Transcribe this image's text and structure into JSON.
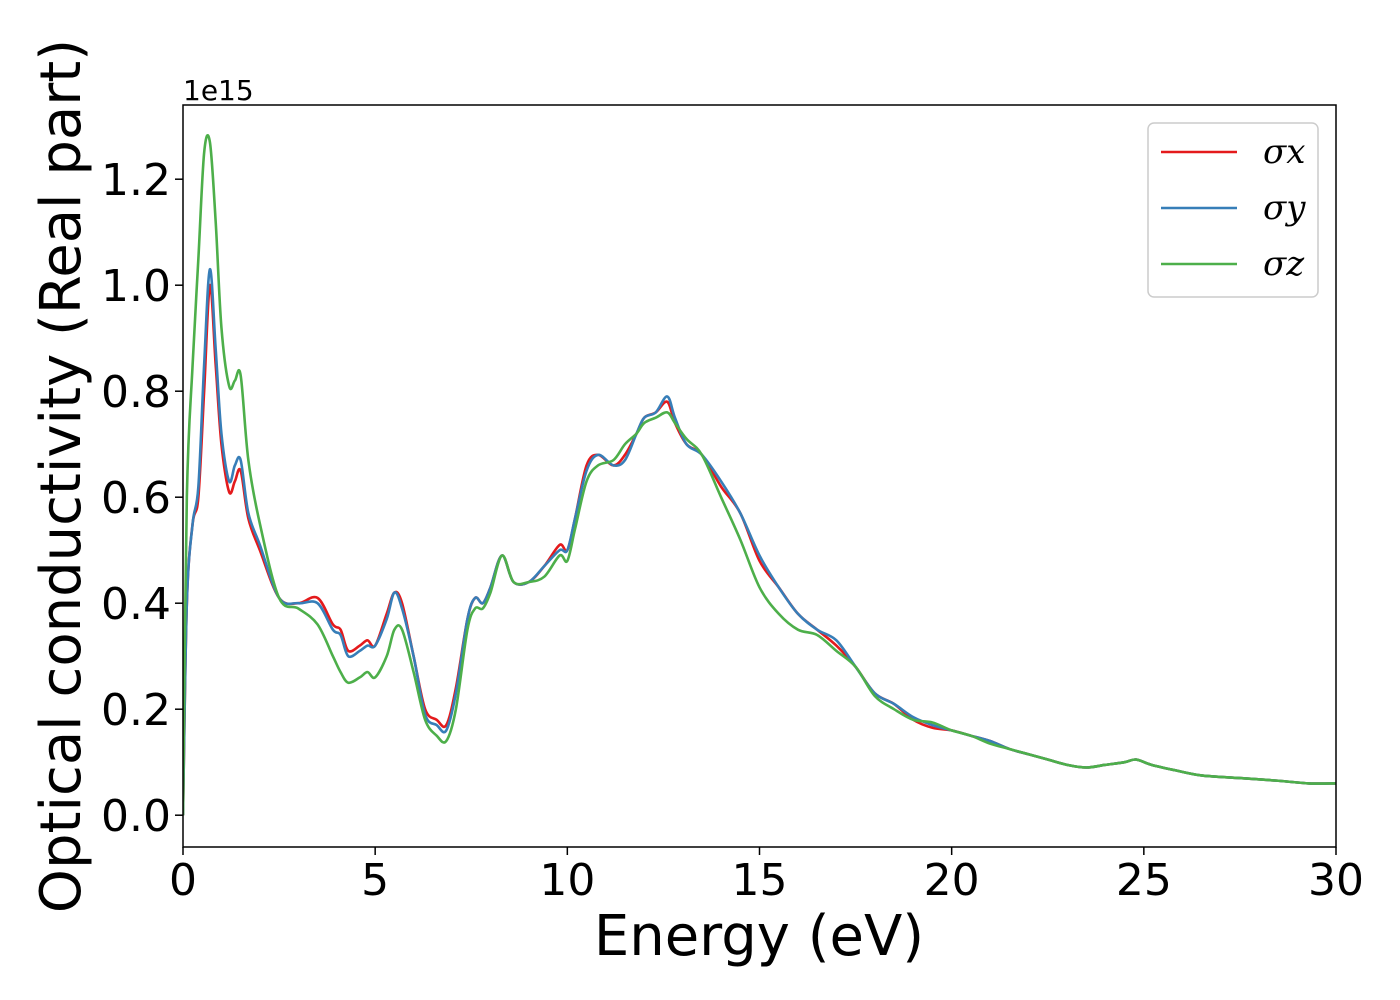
{
  "chart_data": {
    "type": "line",
    "xlabel": "Energy (eV)",
    "ylabel": "Optical conductivity (Real part)",
    "offset_text": "1e15",
    "xlim": [
      0,
      30
    ],
    "ylim": [
      -0.06,
      1.34
    ],
    "x_scale_factor": 1000000000000000.0,
    "x_ticks": [
      0,
      5,
      10,
      15,
      20,
      25,
      30
    ],
    "x_tick_labels": [
      "0",
      "5",
      "10",
      "15",
      "20",
      "25",
      "30"
    ],
    "y_ticks": [
      0.0,
      0.2,
      0.4,
      0.6,
      0.8,
      1.0,
      1.2
    ],
    "y_tick_labels": [
      "0.0",
      "0.2",
      "0.4",
      "0.6",
      "0.8",
      "1.0",
      "1.2"
    ],
    "grid": false,
    "legend_position": "top-right",
    "x": [
      0.0,
      0.1,
      0.25,
      0.4,
      0.55,
      0.7,
      0.85,
      1.0,
      1.2,
      1.35,
      1.5,
      1.7,
      2.0,
      2.5,
      3.0,
      3.5,
      3.9,
      4.1,
      4.3,
      4.6,
      4.8,
      5.0,
      5.3,
      5.5,
      5.7,
      6.0,
      6.3,
      6.6,
      6.85,
      7.1,
      7.4,
      7.6,
      7.8,
      8.0,
      8.3,
      8.6,
      9.0,
      9.4,
      9.8,
      10.0,
      10.2,
      10.5,
      10.8,
      11.2,
      11.5,
      11.8,
      12.0,
      12.3,
      12.6,
      12.8,
      13.1,
      13.5,
      14.0,
      14.5,
      15.0,
      15.5,
      16.0,
      16.5,
      17.0,
      17.5,
      18.0,
      18.5,
      19.0,
      19.5,
      20.0,
      20.5,
      21.0,
      21.5,
      22.0,
      22.5,
      23.0,
      23.5,
      24.0,
      24.5,
      24.8,
      25.2,
      25.8,
      26.5,
      27.5,
      28.5,
      29.3,
      30.0
    ],
    "series": [
      {
        "name": "σx",
        "color": "#e41a1c",
        "values": [
          0.0,
          0.4,
          0.55,
          0.6,
          0.8,
          1.0,
          0.85,
          0.7,
          0.61,
          0.63,
          0.65,
          0.56,
          0.5,
          0.41,
          0.4,
          0.41,
          0.36,
          0.35,
          0.31,
          0.32,
          0.33,
          0.32,
          0.38,
          0.42,
          0.4,
          0.3,
          0.2,
          0.18,
          0.17,
          0.24,
          0.37,
          0.41,
          0.4,
          0.43,
          0.49,
          0.44,
          0.44,
          0.47,
          0.51,
          0.5,
          0.56,
          0.66,
          0.68,
          0.66,
          0.68,
          0.72,
          0.75,
          0.76,
          0.78,
          0.74,
          0.7,
          0.68,
          0.62,
          0.57,
          0.48,
          0.43,
          0.38,
          0.35,
          0.32,
          0.28,
          0.23,
          0.21,
          0.18,
          0.165,
          0.16,
          0.15,
          0.14,
          0.125,
          0.115,
          0.105,
          0.095,
          0.09,
          0.095,
          0.1,
          0.105,
          0.095,
          0.085,
          0.075,
          0.07,
          0.065,
          0.06,
          0.06
        ]
      },
      {
        "name": "σy",
        "color": "#377eb8",
        "values": [
          0.0,
          0.4,
          0.55,
          0.62,
          0.85,
          1.03,
          0.88,
          0.72,
          0.63,
          0.66,
          0.67,
          0.57,
          0.51,
          0.41,
          0.4,
          0.4,
          0.35,
          0.34,
          0.3,
          0.31,
          0.32,
          0.32,
          0.37,
          0.42,
          0.39,
          0.3,
          0.19,
          0.17,
          0.16,
          0.23,
          0.37,
          0.41,
          0.4,
          0.43,
          0.49,
          0.44,
          0.44,
          0.47,
          0.5,
          0.5,
          0.56,
          0.65,
          0.68,
          0.66,
          0.67,
          0.72,
          0.75,
          0.76,
          0.79,
          0.75,
          0.7,
          0.68,
          0.63,
          0.57,
          0.49,
          0.43,
          0.38,
          0.35,
          0.33,
          0.28,
          0.23,
          0.21,
          0.185,
          0.17,
          0.16,
          0.15,
          0.14,
          0.125,
          0.115,
          0.105,
          0.095,
          0.09,
          0.095,
          0.1,
          0.105,
          0.095,
          0.085,
          0.075,
          0.07,
          0.065,
          0.06,
          0.06
        ]
      },
      {
        "name": "σz",
        "color": "#4daf4a",
        "values": [
          0.0,
          0.6,
          0.85,
          1.05,
          1.25,
          1.27,
          1.12,
          0.92,
          0.81,
          0.82,
          0.83,
          0.67,
          0.55,
          0.41,
          0.39,
          0.36,
          0.3,
          0.27,
          0.25,
          0.26,
          0.27,
          0.26,
          0.3,
          0.35,
          0.35,
          0.27,
          0.18,
          0.15,
          0.14,
          0.2,
          0.35,
          0.39,
          0.39,
          0.42,
          0.49,
          0.44,
          0.44,
          0.45,
          0.49,
          0.48,
          0.54,
          0.63,
          0.66,
          0.67,
          0.7,
          0.72,
          0.74,
          0.75,
          0.76,
          0.74,
          0.71,
          0.68,
          0.6,
          0.52,
          0.43,
          0.38,
          0.35,
          0.34,
          0.31,
          0.28,
          0.225,
          0.2,
          0.18,
          0.175,
          0.16,
          0.15,
          0.135,
          0.125,
          0.115,
          0.105,
          0.095,
          0.09,
          0.095,
          0.1,
          0.105,
          0.095,
          0.085,
          0.075,
          0.07,
          0.065,
          0.06,
          0.06
        ]
      }
    ]
  }
}
